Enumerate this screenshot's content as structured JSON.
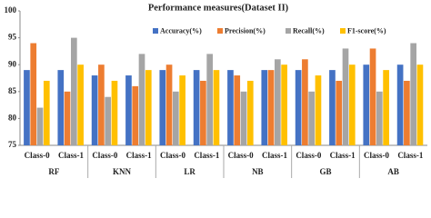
{
  "chart_data": {
    "type": "bar",
    "title": "Performance measures(Dataset II)",
    "categories": [
      "Class-0",
      "Class-1",
      "Class-0",
      "Class-1",
      "Class-0",
      "Class-1",
      "Class-0",
      "Class-1",
      "Class-0",
      "Class-1",
      "Class-0",
      "Class-1"
    ],
    "groups": [
      "RF",
      "KNN",
      "LR",
      "NB",
      "GB",
      "AB"
    ],
    "series": [
      {
        "name": "Accuracy(%)",
        "color": "#4472c4",
        "values": [
          89,
          89,
          88,
          88,
          89,
          89,
          89,
          89,
          89,
          89,
          90,
          90
        ]
      },
      {
        "name": "Precision(%)",
        "color": "#ed7d31",
        "values": [
          94,
          85,
          90,
          86,
          90,
          87,
          88,
          89,
          91,
          87,
          93,
          87
        ]
      },
      {
        "name": "Recall(%)",
        "color": "#a5a5a5",
        "values": [
          82,
          95,
          84,
          92,
          85,
          92,
          85,
          91,
          85,
          93,
          85,
          94
        ]
      },
      {
        "name": "F1-score(%)",
        "color": "#ffc000",
        "values": [
          87,
          90,
          87,
          89,
          88,
          89,
          87,
          90,
          88,
          90,
          89,
          90
        ]
      }
    ],
    "ylim": [
      75,
      100
    ],
    "yticks": [
      75,
      80,
      85,
      90,
      95,
      100
    ],
    "grid": false,
    "legend": "top"
  }
}
